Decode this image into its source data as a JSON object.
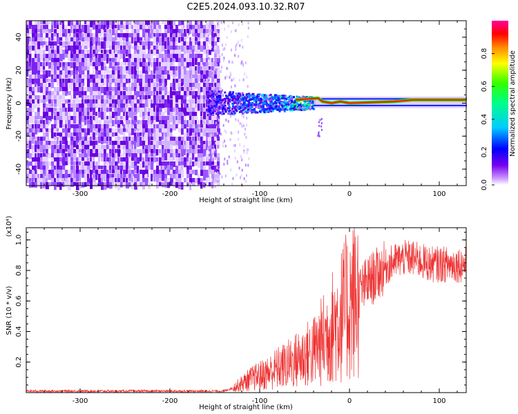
{
  "figure": {
    "title": "C2E5.2024.093.10.32.R07"
  },
  "chart_data": [
    {
      "type": "heatmap",
      "xlabel": "Height of straight line (km)",
      "ylabel": "Frequency (Hz)",
      "xlim": [
        -360,
        130
      ],
      "ylim": [
        -50,
        50
      ],
      "x_ticks": [
        -300,
        -200,
        -100,
        0,
        100
      ],
      "x_tick_labels": [
        "-300",
        "-200",
        "-100",
        "0",
        "100"
      ],
      "y_ticks": [
        -40,
        -20,
        0,
        20,
        40
      ],
      "y_tick_labels": [
        "-40",
        "-20",
        "0",
        "20",
        "40"
      ],
      "colorbar": {
        "label": "Normalized spectral amplitude",
        "range": [
          0,
          1
        ],
        "ticks": [
          0.0,
          0.2,
          0.4,
          0.6,
          0.8
        ],
        "tick_labels": [
          "0.0",
          "0.2",
          "0.4",
          "0.6",
          "0.8"
        ]
      },
      "regions": [
        {
          "x_range": [
            -360,
            -150
          ],
          "freq_range": [
            -50,
            50
          ],
          "amplitude": 0.1
        },
        {
          "x_range": [
            -160,
            -40
          ],
          "freq_range": [
            -10,
            8
          ],
          "amplitude": 0.35
        },
        {
          "x_range": [
            -40,
            130
          ],
          "freq_range": [
            -1,
            3
          ],
          "amplitude": 0.9
        }
      ],
      "carrier_line": {
        "x": [
          -60,
          -35,
          -30,
          -20,
          -10,
          0,
          50,
          70,
          100,
          130
        ],
        "freq": [
          2,
          3,
          1,
          0,
          1,
          0,
          1,
          2,
          2,
          2
        ]
      },
      "grid": false
    },
    {
      "type": "line",
      "xlabel": "Height of straight line (km)",
      "ylabel": "SNR (10 * v/v)",
      "y_multiplier": "(x10⁴)",
      "xlim": [
        -360,
        130
      ],
      "ylim": [
        0,
        1.08
      ],
      "x_ticks": [
        -300,
        -200,
        -100,
        0,
        100
      ],
      "x_tick_labels": [
        "-300",
        "-200",
        "-100",
        "0",
        "100"
      ],
      "y_ticks": [
        0.2,
        0.4,
        0.6,
        0.8,
        1.0
      ],
      "y_tick_labels": [
        "0.2",
        "0.4",
        "0.6",
        "0.8",
        "1.0"
      ],
      "series": [
        {
          "color": "#ee3333",
          "x": [
            -360,
            -300,
            -200,
            -140,
            -130,
            -120,
            -110,
            -100,
            -90,
            -80,
            -70,
            -60,
            -50,
            -40,
            -30,
            -20,
            -10,
            0,
            10,
            20,
            30,
            40,
            50,
            60,
            70,
            80,
            90,
            100,
            110,
            120,
            130
          ],
          "y": [
            0.01,
            0.01,
            0.01,
            0.01,
            0.03,
            0.06,
            0.09,
            0.11,
            0.13,
            0.16,
            0.18,
            0.21,
            0.24,
            0.27,
            0.34,
            0.42,
            0.5,
            0.58,
            0.65,
            0.72,
            0.77,
            0.82,
            0.86,
            0.88,
            0.88,
            0.86,
            0.84,
            0.84,
            0.84,
            0.84,
            0.84
          ]
        }
      ],
      "grid": false
    }
  ]
}
